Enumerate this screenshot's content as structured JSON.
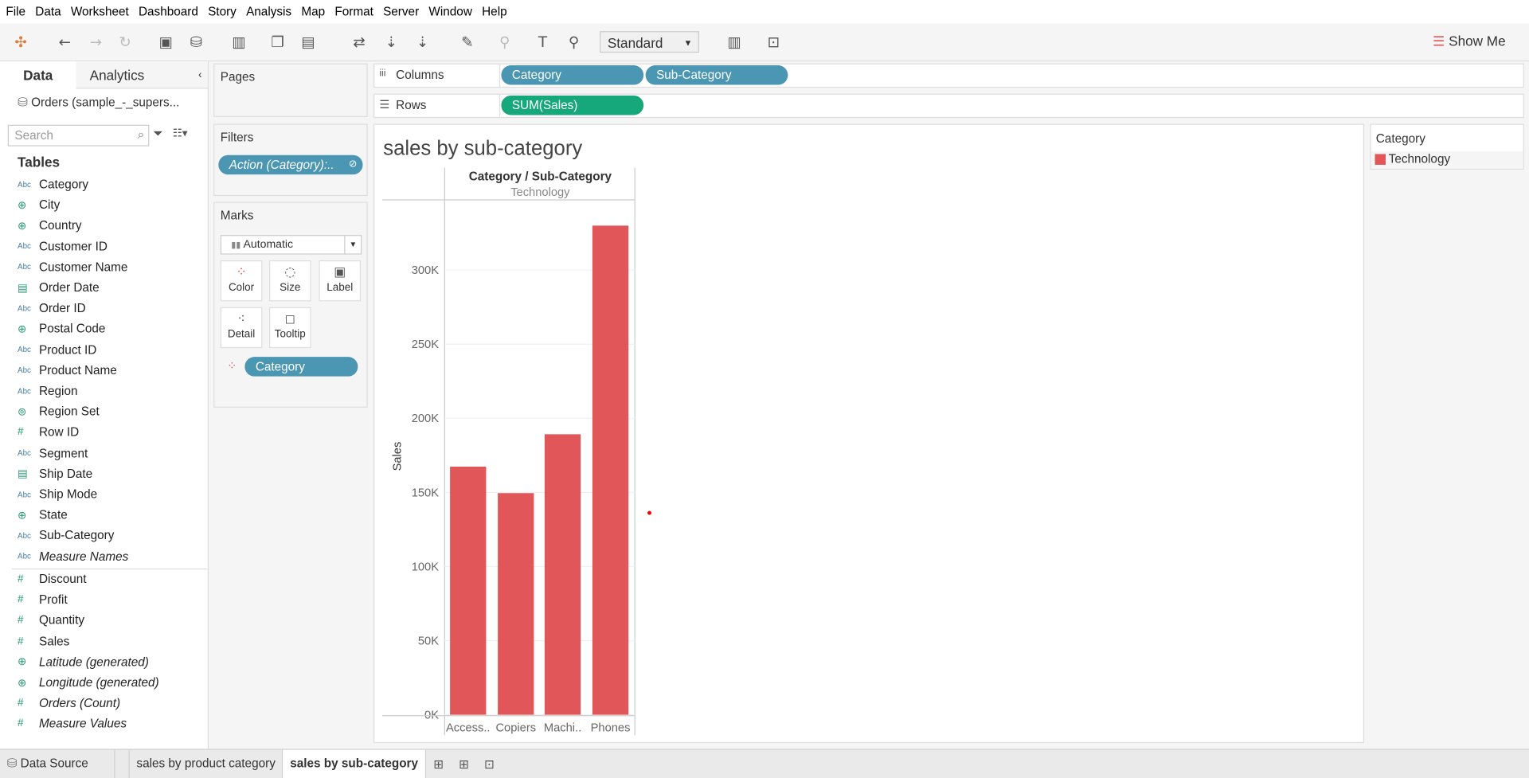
{
  "menu": [
    "File",
    "Data",
    "Worksheet",
    "Dashboard",
    "Story",
    "Analysis",
    "Map",
    "Format",
    "Server",
    "Window",
    "Help"
  ],
  "toolbar": {
    "fit_select": "Standard",
    "show_me": "Show Me"
  },
  "left_pane": {
    "tabs": [
      "Data",
      "Analytics"
    ],
    "datasource": "Orders (sample_-_supers...",
    "search_placeholder": "Search",
    "tables_label": "Tables",
    "dimensions": [
      {
        "icon": "Abc",
        "label": "Category"
      },
      {
        "icon": "globe",
        "label": "City"
      },
      {
        "icon": "globe",
        "label": "Country"
      },
      {
        "icon": "Abc",
        "label": "Customer ID"
      },
      {
        "icon": "Abc",
        "label": "Customer Name"
      },
      {
        "icon": "calendar",
        "label": "Order Date"
      },
      {
        "icon": "Abc",
        "label": "Order ID"
      },
      {
        "icon": "globe",
        "label": "Postal Code"
      },
      {
        "icon": "Abc",
        "label": "Product ID"
      },
      {
        "icon": "Abc",
        "label": "Product Name"
      },
      {
        "icon": "Abc",
        "label": "Region"
      },
      {
        "icon": "set",
        "label": "Region Set"
      },
      {
        "icon": "#",
        "label": "Row ID"
      },
      {
        "icon": "Abc",
        "label": "Segment"
      },
      {
        "icon": "calendar",
        "label": "Ship Date"
      },
      {
        "icon": "Abc",
        "label": "Ship Mode"
      },
      {
        "icon": "globe",
        "label": "State"
      },
      {
        "icon": "Abc",
        "label": "Sub-Category"
      },
      {
        "icon": "Abc",
        "label": "Measure Names",
        "italic": true
      }
    ],
    "measures": [
      {
        "icon": "#",
        "label": "Discount"
      },
      {
        "icon": "#",
        "label": "Profit"
      },
      {
        "icon": "#",
        "label": "Quantity"
      },
      {
        "icon": "#",
        "label": "Sales"
      },
      {
        "icon": "globe",
        "label": "Latitude (generated)",
        "italic": true
      },
      {
        "icon": "globe",
        "label": "Longitude (generated)",
        "italic": true
      },
      {
        "icon": "#",
        "label": "Orders (Count)",
        "italic": true
      },
      {
        "icon": "#",
        "label": "Measure Values",
        "italic": true
      }
    ]
  },
  "pages": {
    "title": "Pages"
  },
  "filters": {
    "title": "Filters",
    "pill": "Action (Category):.."
  },
  "marks": {
    "title": "Marks",
    "type": "Automatic",
    "buttons": [
      "Color",
      "Size",
      "Label",
      "Detail",
      "Tooltip"
    ],
    "pill": "Category"
  },
  "shelves": {
    "columns_label": "Columns",
    "rows_label": "Rows",
    "columns": [
      "Category",
      "Sub-Category"
    ],
    "rows": [
      "SUM(Sales)"
    ]
  },
  "legend": {
    "title": "Category",
    "items": [
      {
        "label": "Technology",
        "color": "#e15759"
      }
    ]
  },
  "chart_data": {
    "type": "bar",
    "title": "sales by sub-category",
    "header": "Category / Sub-Category",
    "category_group": "Technology",
    "categories": [
      "Access..",
      "Copiers",
      "Machi..",
      "Phones"
    ],
    "values": [
      167380,
      149528,
      189239,
      330007
    ],
    "ylabel": "Sales",
    "ylim": [
      0,
      340000
    ],
    "yticks": [
      "0K",
      "50K",
      "100K",
      "150K",
      "200K",
      "250K",
      "300K"
    ],
    "ytick_values": [
      0,
      50000,
      100000,
      150000,
      200000,
      250000,
      300000
    ],
    "color": "#e15759",
    "grid": true
  },
  "bottom_tabs": [
    "Data Source",
    "sales by product category",
    "sales by sub-category"
  ]
}
